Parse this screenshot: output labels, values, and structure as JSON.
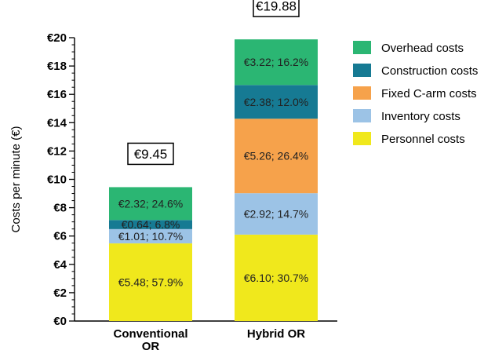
{
  "chart_data": {
    "type": "bar",
    "stacked": true,
    "title": "",
    "xlabel": "",
    "ylabel": "Costs per minute (€)",
    "ylim": [
      0,
      20
    ],
    "y_tick_step": 2,
    "y_tick_labels": [
      "€0",
      "€2",
      "€4",
      "€6",
      "€8",
      "€10",
      "€12",
      "€14",
      "€16",
      "€18",
      "€20"
    ],
    "categories": [
      "Conventional OR",
      "Hybrid OR"
    ],
    "totals": [
      "€9.45",
      "€19.88"
    ],
    "series": [
      {
        "name": "Personnel costs",
        "color": "#f0e81c",
        "values": [
          5.48,
          6.1
        ],
        "labels": [
          "€5.48; 57.9%",
          "€6.10; 30.7%"
        ]
      },
      {
        "name": "Inventory costs",
        "color": "#9cc3e6",
        "values": [
          1.01,
          2.92
        ],
        "labels": [
          "€1.01; 10.7%",
          "€2.92; 14.7%"
        ]
      },
      {
        "name": "Fixed C-arm costs",
        "color": "#f6a24b",
        "values": [
          0,
          5.26
        ],
        "labels": [
          "",
          "€5.26; 26.4%"
        ]
      },
      {
        "name": "Construction costs",
        "color": "#167a93",
        "values": [
          0.64,
          2.38
        ],
        "labels": [
          "€0.64; 6.8%",
          "€2.38; 12.0%"
        ]
      },
      {
        "name": "Overhead costs",
        "color": "#2bb673",
        "values": [
          2.32,
          3.22
        ],
        "labels": [
          "€2.32; 24.6%",
          "€3.22; 16.2%"
        ]
      }
    ],
    "legend": {
      "position": "right",
      "order": [
        "Overhead costs",
        "Construction costs",
        "Fixed C-arm costs",
        "Inventory costs",
        "Personnel costs"
      ]
    },
    "grid": false
  }
}
